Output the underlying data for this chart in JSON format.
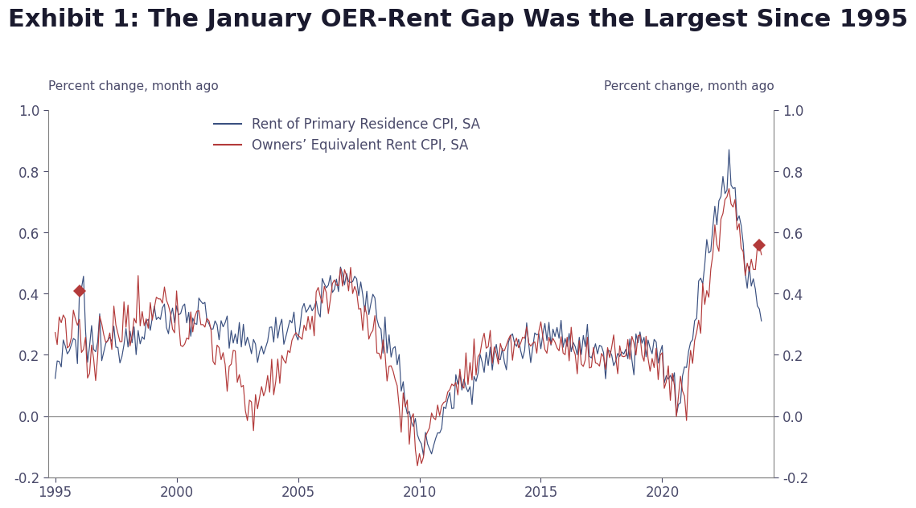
{
  "title": "Exhibit 1: The January OER-Rent Gap Was the Largest Since 1995",
  "ylabel_left": "Percent change, month ago",
  "ylabel_right": "Percent change, month ago",
  "ylim": [
    -0.2,
    1.0
  ],
  "yticks": [
    -0.2,
    0.0,
    0.2,
    0.4,
    0.6,
    0.8,
    1.0
  ],
  "xlim_start": 1994.7,
  "xlim_end": 2024.6,
  "xticks": [
    1995,
    2000,
    2005,
    2010,
    2015,
    2020
  ],
  "rent_color": "#3A5080",
  "oer_color": "#B33A3A",
  "marker_color": "#B33A3A",
  "background_color": "#FFFFFF",
  "legend_rent": "Rent of Primary Residence CPI, SA",
  "legend_oer": "Owners’ Equivalent Rent CPI, SA",
  "title_fontsize": 22,
  "axis_label_fontsize": 11,
  "tick_fontsize": 12,
  "legend_fontsize": 12,
  "title_color": "#1a1a2e",
  "tick_color": "#4a4a6a"
}
